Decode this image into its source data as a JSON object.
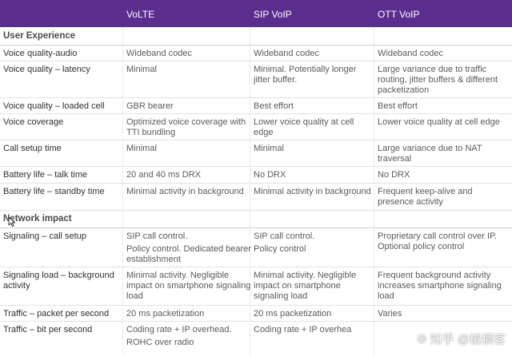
{
  "header": {
    "col1": "VoLTE",
    "col2": "SIP VoIP",
    "col3": "OTT VoIP"
  },
  "sections": {
    "user_experience": "User Experience",
    "network_impact": "Network impact"
  },
  "rows": [
    {
      "label": "Voice quality-audio",
      "volte": "Wideband codec",
      "sip": "Wideband codec",
      "ott": "Wideband codec"
    },
    {
      "label": "Voice quality – latency",
      "volte": "Minimal",
      "sip": "Minimal. Potentially longer jitter buffer.",
      "ott": "Large variance due to traffic routing, jitter buffers & different packetization"
    },
    {
      "label": "Voice quality – loaded cell",
      "volte": "GBR bearer",
      "sip": "Best effort",
      "ott": "Best effort"
    },
    {
      "label": "Voice coverage",
      "volte": "Optimized voice coverage with TTI bundling",
      "sip": "Lower voice quality at cell edge",
      "ott": "Lower voice quality at cell edge"
    },
    {
      "label": "Call setup time",
      "volte": "Minimal",
      "sip": "Minimal",
      "ott": "Large variance due to NAT traversal"
    },
    {
      "label": "Battery life – talk time",
      "volte": "20 and 40 ms DRX",
      "sip": "No DRX",
      "ott": "No DRX"
    },
    {
      "label": "Battery life – standby time",
      "volte": "Minimal activity in background",
      "sip": "Minimal activity in background",
      "ott": "Frequent keep-alive and presence activity"
    },
    {
      "label": "Signaling – call setup",
      "volte": "SIP call control.",
      "volte2": "Policy control. Dedicated bearer establishment",
      "sip": "SIP call control.",
      "sip2": "Policy control",
      "ott": "Proprietary call control over IP. Optional policy control"
    },
    {
      "label": "Signaling load – background activity",
      "volte": "Minimal activity. Negligible impact on smartphone signaling load",
      "sip": "Minimal activity. Negligible impact on smartphone signaling load",
      "ott": "Frequent background activity increases smartphone signaling load"
    },
    {
      "label": "Traffic – packet per second",
      "volte": "20 ms packetization",
      "sip": "20 ms packetization",
      "ott": "Varies"
    },
    {
      "label": "Traffic – bit per second",
      "volte": "Coding rate + IP overhead.",
      "volte2": "ROHC over radio",
      "sip": "Coding rate + IP overhea",
      "ott": ""
    }
  ],
  "watermark": "知乎 @椒横客",
  "icons": {
    "cursor": "mouse-pointer-icon",
    "watermark_logo": "paw-icon"
  },
  "colors": {
    "header_bg": "#5b2d8e",
    "header_text": "#ffffff",
    "body_text": "#5a5a5a"
  }
}
